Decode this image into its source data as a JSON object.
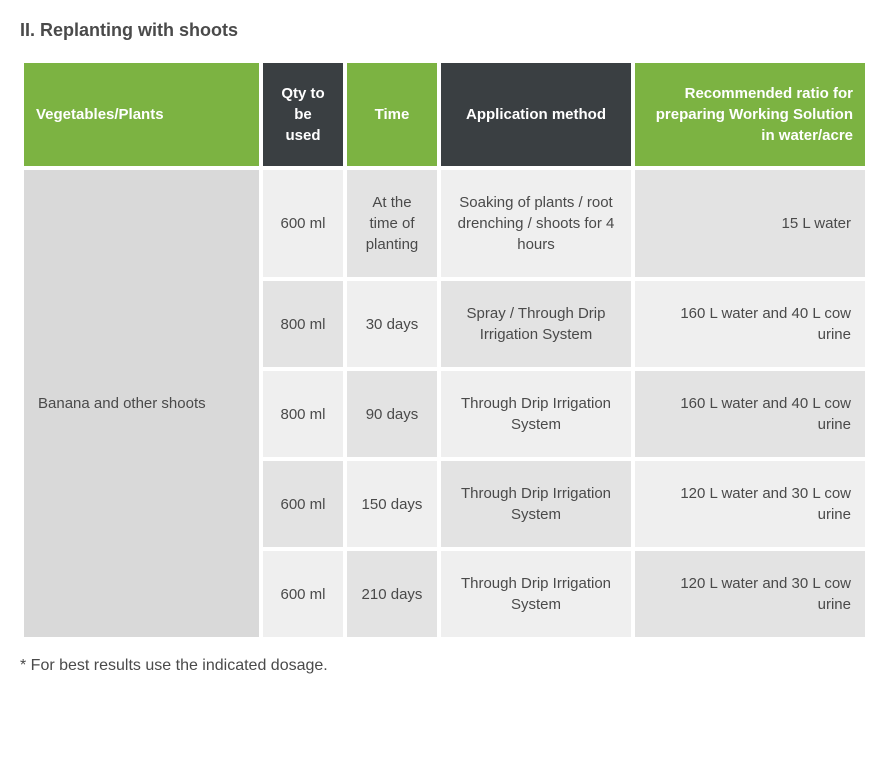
{
  "title": "II. Replanting with shoots",
  "footnote": "* For best results use the indicated dosage.",
  "colors": {
    "header_green": "#7cb342",
    "header_dark": "#3a3f42",
    "cell_light": "#efefef",
    "cell_lighter": "#e3e3e3",
    "plant_bg": "#d9d9d9",
    "text": "#4a4a4a",
    "white": "#ffffff"
  },
  "columns": [
    {
      "label": "Vegetables/Plants",
      "class": "col-plants",
      "color_key": "header_green"
    },
    {
      "label": "Qty to be used",
      "class": "col-qty",
      "color_key": "header_dark"
    },
    {
      "label": "Time",
      "class": "col-time",
      "color_key": "header_green"
    },
    {
      "label": "Application method",
      "class": "col-method",
      "color_key": "header_dark"
    },
    {
      "label": "Recommended ratio for preparing Working Solution in water/acre",
      "class": "col-ratio",
      "color_key": "header_green"
    }
  ],
  "plant_label": "Banana and other shoots",
  "rows": [
    {
      "qty": "600 ml",
      "time": "At the time of planting",
      "method": "Soaking of plants / root drenching / shoots for 4 hours",
      "ratio": "15 L water"
    },
    {
      "qty": "800 ml",
      "time": "30 days",
      "method": "Spray / Through Drip Irrigation System",
      "ratio": "160 L water and 40 L cow urine"
    },
    {
      "qty": "800 ml",
      "time": "90 days",
      "method": "Through Drip Irrigation System",
      "ratio": "160 L water and 40 L cow urine"
    },
    {
      "qty": "600 ml",
      "time": "150 days",
      "method": "Through Drip Irrigation System",
      "ratio": "120 L water and 30 L cow urine"
    },
    {
      "qty": "600 ml",
      "time": "210 days",
      "method": "Through Drip Irrigation System",
      "ratio": "120 L water and 30 L cow urine"
    }
  ]
}
